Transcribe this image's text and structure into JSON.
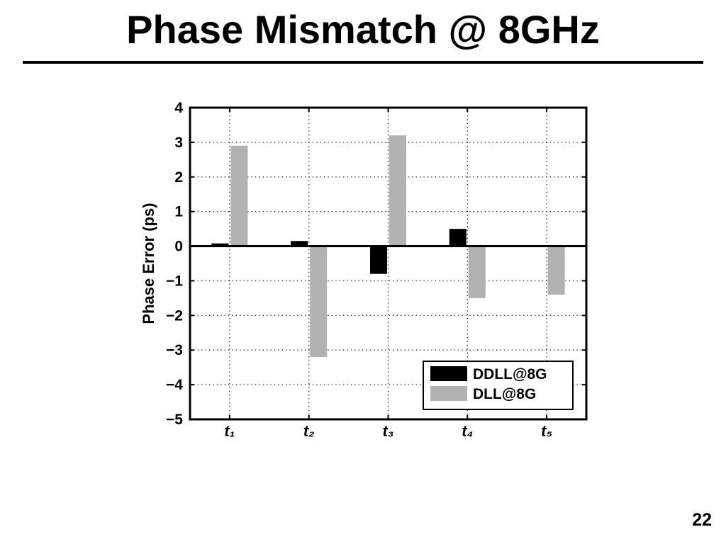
{
  "slide": {
    "title": "Phase Mismatch @ 8GHz",
    "page_number": "22"
  },
  "chart_data": {
    "type": "bar",
    "categories": [
      "t₁",
      "t₂",
      "t₃",
      "t₄",
      "t₅"
    ],
    "series": [
      {
        "name": "DDLL@8G",
        "values": [
          0.08,
          0.15,
          -0.8,
          0.5,
          0
        ],
        "color": "#000000"
      },
      {
        "name": "DLL@8G",
        "values": [
          2.9,
          -3.2,
          3.2,
          -1.5,
          -1.4
        ],
        "color": "#b2b2b2"
      }
    ],
    "ylabel": "Phase Error (ps)",
    "ylim": [
      -5,
      4
    ],
    "yticks": [
      4,
      3,
      2,
      1,
      0,
      -1,
      -2,
      -3,
      -4,
      -5
    ],
    "ytick_labels": [
      "4",
      "3",
      "2",
      "1",
      "0",
      "−1",
      "−2",
      "−3",
      "−4",
      "−5"
    ],
    "grid": true,
    "legend_position": "bottom-right"
  }
}
